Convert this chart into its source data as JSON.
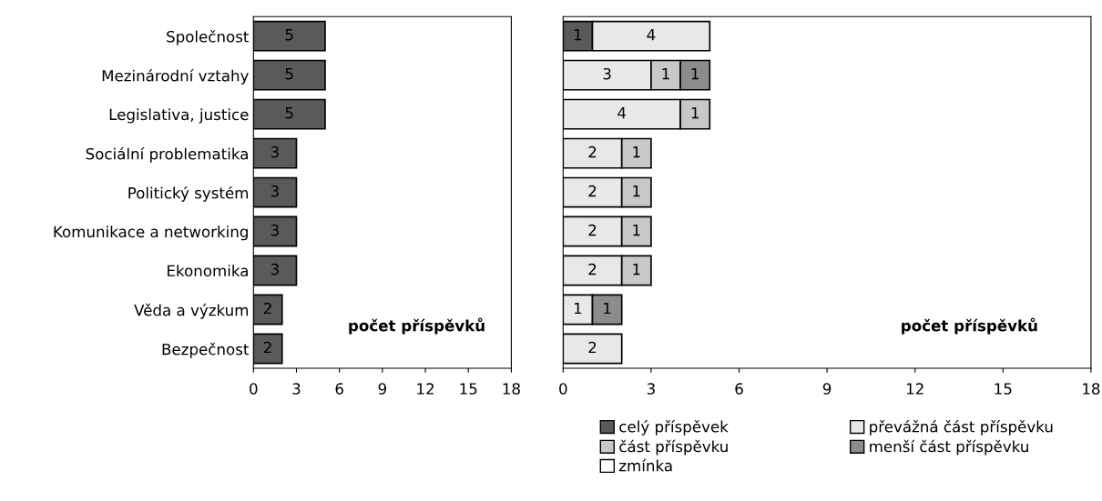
{
  "chart_data": [
    {
      "type": "bar",
      "orientation": "horizontal",
      "categories": [
        "Společnost",
        "Mezinárodní vztahy",
        "Legislativa, justice",
        "Sociální problematika",
        "Politický systém",
        "Komunikace a networking",
        "Ekonomika",
        "Věda a výzkum",
        "Bezpečnost"
      ],
      "series": [
        {
          "color": "#5a5a5a",
          "values": [
            5,
            5,
            5,
            3,
            3,
            3,
            3,
            2,
            2
          ]
        }
      ],
      "xlim": [
        0,
        18
      ],
      "xticks": [
        0,
        3,
        6,
        9,
        12,
        15,
        18
      ],
      "data_labels": true,
      "grid": false,
      "legend": false,
      "annotations": [
        "počet příspěvků"
      ]
    },
    {
      "type": "bar",
      "orientation": "horizontal",
      "stacked": true,
      "categories": [
        null,
        null,
        null,
        null,
        null,
        null,
        null,
        null,
        null
      ],
      "series": [
        {
          "name": "celý příspěvek",
          "color": "#5a5a5a",
          "values": [
            1,
            null,
            null,
            null,
            null,
            null,
            null,
            null,
            null
          ]
        },
        {
          "name": "převážná část příspěvku",
          "color": "#e8e8e8",
          "values": [
            4,
            3,
            4,
            2,
            2,
            2,
            2,
            1,
            2
          ]
        },
        {
          "name": "část příspěvku",
          "color": "#c8c8c8",
          "values": [
            null,
            1,
            1,
            1,
            1,
            1,
            1,
            null,
            null
          ]
        },
        {
          "name": "menší část příspěvku",
          "color": "#8c8c8c",
          "values": [
            null,
            1,
            null,
            null,
            null,
            null,
            null,
            1,
            null
          ]
        },
        {
          "name": "zmínka",
          "color": "#ffffff",
          "values": [
            null,
            null,
            null,
            null,
            null,
            null,
            null,
            null,
            null
          ]
        }
      ],
      "xlim": [
        0,
        18
      ],
      "xticks": [
        0,
        3,
        6,
        9,
        12,
        15,
        18
      ],
      "data_labels": true,
      "grid": false,
      "legend": "bottom",
      "annotations": [
        "počet příspěvků"
      ]
    }
  ]
}
